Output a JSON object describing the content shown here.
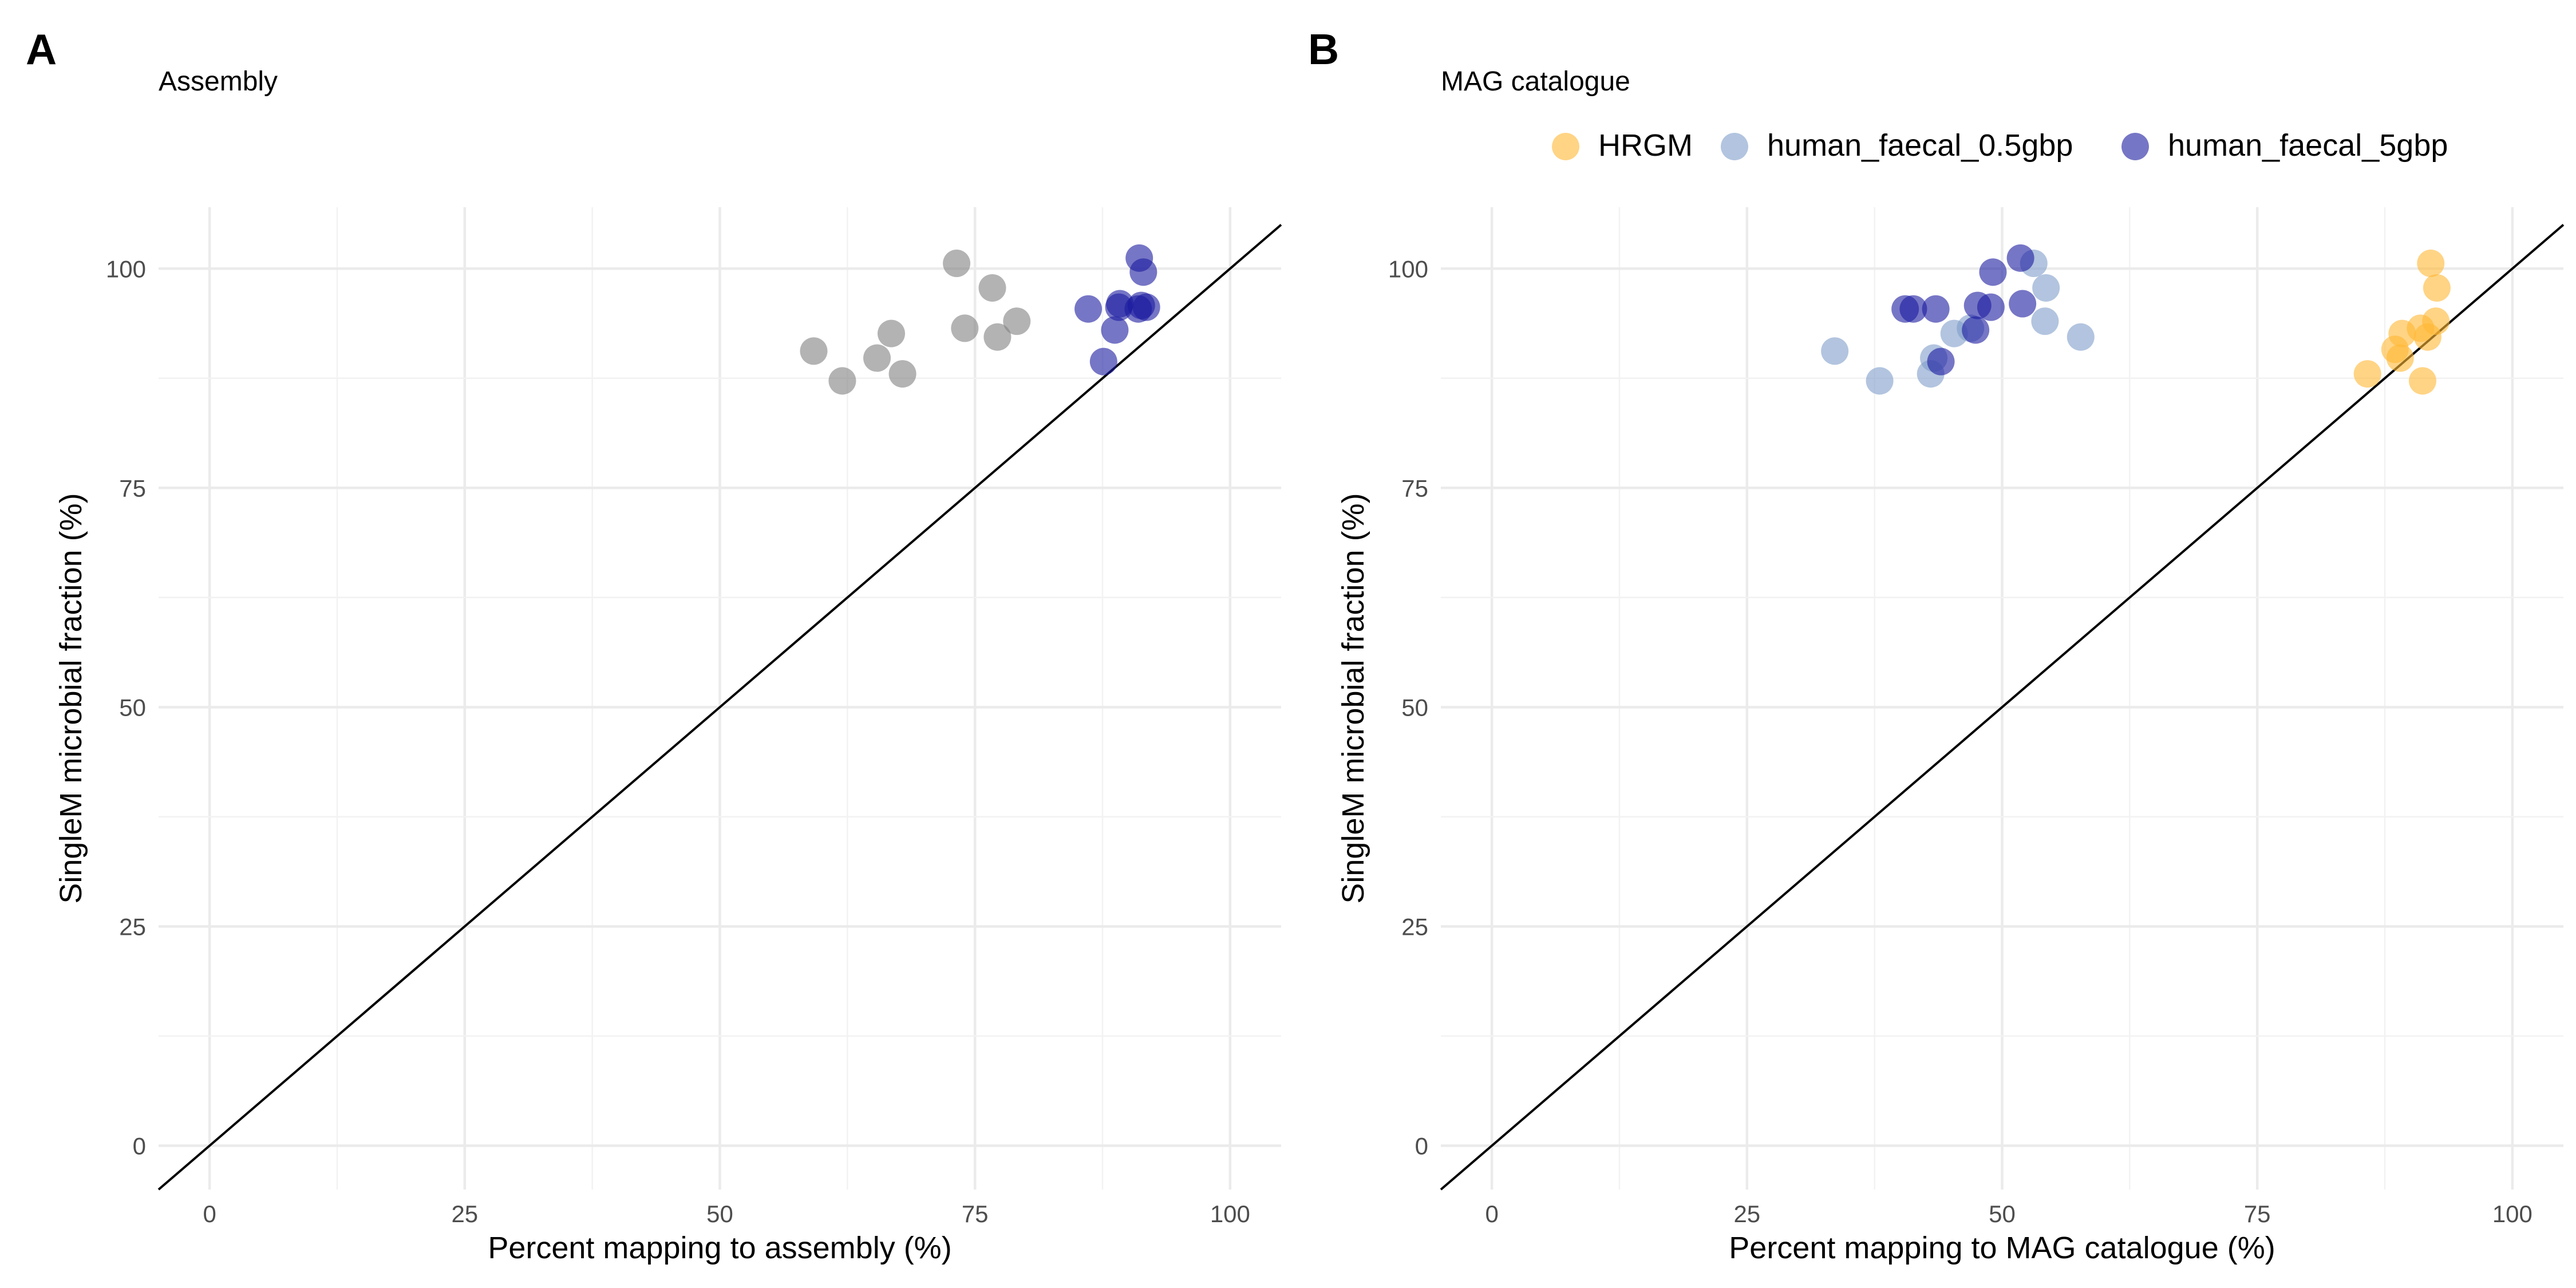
{
  "chart_data": [
    {
      "type": "scatter",
      "panel_tag": "A",
      "title": "Assembly",
      "xlabel": "Percent mapping to assembly (%)",
      "ylabel": "SingleM microbial fraction (%)",
      "xlim": [
        -5,
        105
      ],
      "ylim": [
        -5,
        107
      ],
      "xticks": [
        0,
        25,
        50,
        75,
        100
      ],
      "yticks": [
        0,
        25,
        50,
        75,
        100
      ],
      "grid": true,
      "reference_line": "y = x",
      "legend": "none",
      "series": [
        {
          "color": "#808080",
          "points": [
            [
              59.2,
              90.6
            ],
            [
              62.0,
              87.2
            ],
            [
              65.4,
              89.8
            ],
            [
              66.8,
              92.6
            ],
            [
              67.9,
              88.0
            ],
            [
              73.2,
              100.6
            ],
            [
              74.0,
              93.2
            ],
            [
              76.7,
              97.8
            ],
            [
              77.2,
              92.2
            ],
            [
              79.1,
              94.0
            ]
          ]
        },
        {
          "color": "#1a1aa0",
          "points": [
            [
              86.1,
              95.4
            ],
            [
              87.6,
              89.4
            ],
            [
              88.7,
              93.0
            ],
            [
              89.1,
              95.6
            ],
            [
              89.2,
              96.0
            ],
            [
              91.0,
              95.4
            ],
            [
              91.1,
              101.2
            ],
            [
              91.3,
              95.8
            ],
            [
              91.5,
              99.6
            ],
            [
              91.8,
              95.6
            ]
          ]
        }
      ]
    },
    {
      "type": "scatter",
      "panel_tag": "B",
      "title": "MAG catalogue",
      "xlabel": "Percent mapping to MAG catalogue (%)",
      "ylabel": "SingleM microbial fraction (%)",
      "xlim": [
        -5,
        105
      ],
      "ylim": [
        -5,
        107
      ],
      "xticks": [
        0,
        25,
        50,
        75,
        100
      ],
      "yticks": [
        0,
        25,
        50,
        75,
        100
      ],
      "grid": true,
      "reference_line": "y = x",
      "legend": "top-right",
      "series": [
        {
          "name": "HRGM",
          "color": "#ffb733",
          "points": [
            [
              85.8,
              88.0
            ],
            [
              88.5,
              90.8
            ],
            [
              89.0,
              89.8
            ],
            [
              89.2,
              92.6
            ],
            [
              91.0,
              93.2
            ],
            [
              91.2,
              87.2
            ],
            [
              91.7,
              92.2
            ],
            [
              92.0,
              100.6
            ],
            [
              92.5,
              94.0
            ],
            [
              92.6,
              97.8
            ]
          ]
        },
        {
          "name": "human_faecal_0.5gbp",
          "color": "#7f9cc9",
          "points": [
            [
              33.6,
              90.6
            ],
            [
              38.0,
              87.2
            ],
            [
              43.0,
              88.0
            ],
            [
              43.3,
              89.8
            ],
            [
              45.3,
              92.6
            ],
            [
              46.9,
              93.2
            ],
            [
              53.1,
              100.6
            ],
            [
              54.2,
              94.0
            ],
            [
              54.3,
              97.8
            ],
            [
              57.7,
              92.2
            ]
          ]
        },
        {
          "name": "human_faecal_5gbp",
          "color": "#1a1aa0",
          "points": [
            [
              40.5,
              95.4
            ],
            [
              41.3,
              95.4
            ],
            [
              43.5,
              95.4
            ],
            [
              44.0,
              89.4
            ],
            [
              47.4,
              93.0
            ],
            [
              47.6,
              95.8
            ],
            [
              48.9,
              95.6
            ],
            [
              49.1,
              99.6
            ],
            [
              51.8,
              101.2
            ],
            [
              52.0,
              96.0
            ]
          ]
        }
      ]
    }
  ]
}
